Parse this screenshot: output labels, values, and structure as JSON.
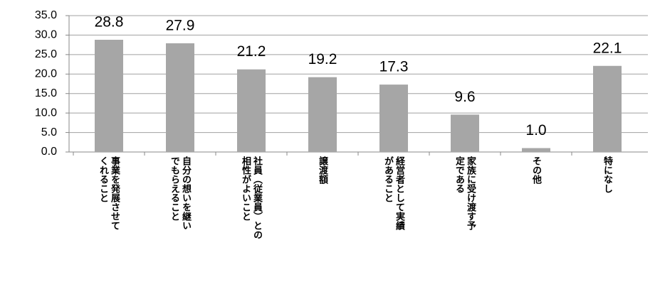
{
  "chart_data": {
    "type": "bar",
    "categories": [
      "事業を発展させて\nくれること",
      "自分の想いを継い\nでもらえること",
      "社員（従業員）との\n相性がよいこと",
      "譲渡額",
      "経営者として実績\nがあること",
      "家族に受け渡す予\n定である",
      "その他",
      "特になし"
    ],
    "values": [
      28.8,
      27.9,
      21.2,
      19.2,
      17.3,
      9.6,
      1.0,
      22.1
    ],
    "value_labels": [
      "28.8",
      "27.9",
      "21.2",
      "19.2",
      "17.3",
      "9.6",
      "1.0",
      "22.1"
    ],
    "color": "#a6a6a6",
    "ylim": [
      0,
      35
    ],
    "yticks": [
      {
        "value": 0,
        "label": "0.0"
      },
      {
        "value": 5,
        "label": "5.0"
      },
      {
        "value": 10,
        "label": "10.0"
      },
      {
        "value": 15,
        "label": "15.0"
      },
      {
        "value": 20,
        "label": "20.0"
      },
      {
        "value": 25,
        "label": "25.0"
      },
      {
        "value": 30,
        "label": "30.0"
      },
      {
        "value": 35,
        "label": "35.0"
      }
    ],
    "grid": true
  }
}
